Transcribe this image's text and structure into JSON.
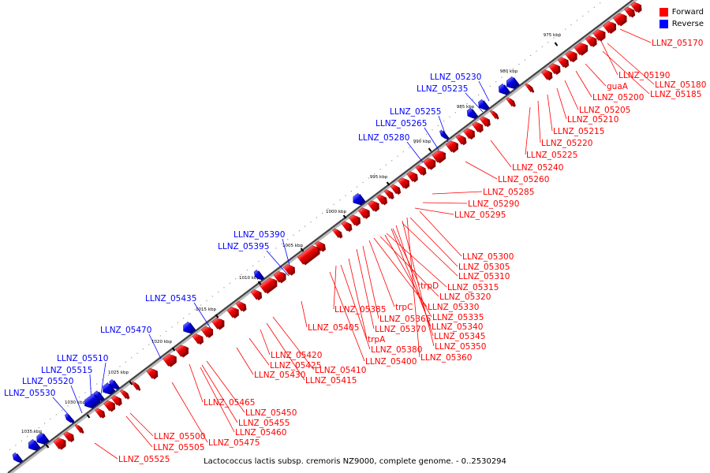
{
  "legend": {
    "forward_label": "Forward",
    "reverse_label": "Reverse",
    "forward_color": "#ff0000",
    "reverse_color": "#0000ff"
  },
  "caption": "Lactococcus lactis subsp. cremoris NZ9000, complete genome. - 0..2530294",
  "ticks": [
    "975 kbp",
    "980 kbp",
    "985 kbp",
    "990 kbp",
    "995 kbp",
    "1000 kbp",
    "1005 kbp",
    "1010 kbp",
    "1015 kbp",
    "1020 kbp",
    "1025 kbp",
    "1030 kbp",
    "1035 kbp"
  ],
  "forward_labels": [
    "LLNZ_05170",
    "LLNZ_05190",
    "LLNZ_05180",
    "guaA",
    "LLNZ_05185",
    "LLNZ_05200",
    "LLNZ_05205",
    "LLNZ_05210",
    "LLNZ_05215",
    "LLNZ_05220",
    "LLNZ_05225",
    "LLNZ_05240",
    "LLNZ_05260",
    "LLNZ_05285",
    "LLNZ_05290",
    "LLNZ_05295",
    "LLNZ_05300",
    "LLNZ_05305",
    "LLNZ_05310",
    "trpD",
    "LLNZ_05315",
    "LLNZ_05320",
    "LLNZ_05385",
    "trpC",
    "LLNZ_05330",
    "LLNZ_05365",
    "LLNZ_05335",
    "LLNZ_05405",
    "LLNZ_05370",
    "LLNZ_05340",
    "trpA",
    "LLNZ_05345",
    "LLNZ_05380",
    "LLNZ_05350",
    "LLNZ_05420",
    "LLNZ_05400",
    "LLNZ_05360",
    "LLNZ_05425",
    "LLNZ_05410",
    "LLNZ_05430",
    "LLNZ_05415",
    "LLNZ_05465",
    "LLNZ_05450",
    "LLNZ_05455",
    "LLNZ_05460",
    "LLNZ_05500",
    "LLNZ_05475",
    "LLNZ_05505",
    "LLNZ_05525"
  ],
  "reverse_labels": [
    "LLNZ_05230",
    "LLNZ_05235",
    "LLNZ_05255",
    "LLNZ_05265",
    "LLNZ_05280",
    "LLNZ_05390",
    "LLNZ_05395",
    "LLNZ_05435",
    "LLNZ_05470",
    "LLNZ_05510",
    "LLNZ_05515",
    "LLNZ_05520",
    "LLNZ_05530"
  ]
}
